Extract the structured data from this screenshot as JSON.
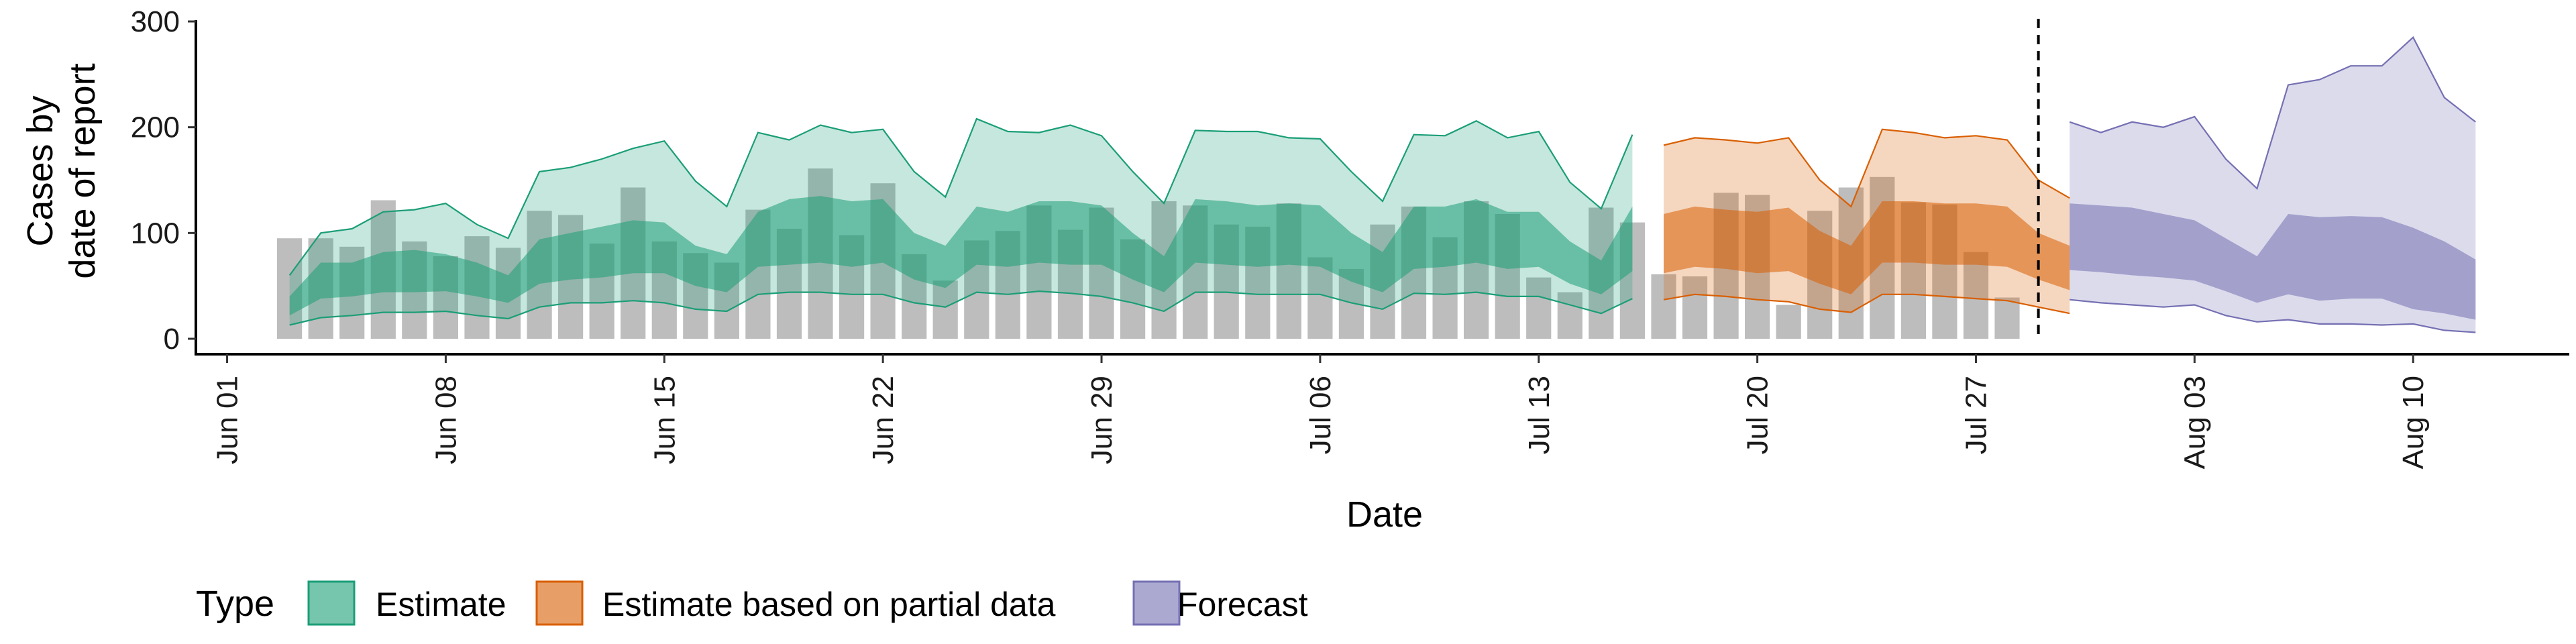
{
  "chart_data": {
    "type": "area",
    "xlabel": "Date",
    "ylabel": [
      "Cases by",
      "date of report"
    ],
    "ylim": [
      0,
      300
    ],
    "yticks": [
      0,
      100,
      200,
      300
    ],
    "xlim": [
      "2020-05-31",
      "2020-08-15"
    ],
    "xticks": [
      {
        "date": "2020-06-01",
        "label": "Jun 01"
      },
      {
        "date": "2020-06-08",
        "label": "Jun 08"
      },
      {
        "date": "2020-06-15",
        "label": "Jun 15"
      },
      {
        "date": "2020-06-22",
        "label": "Jun 22"
      },
      {
        "date": "2020-06-29",
        "label": "Jun 29"
      },
      {
        "date": "2020-07-06",
        "label": "Jul 06"
      },
      {
        "date": "2020-07-13",
        "label": "Jul 13"
      },
      {
        "date": "2020-07-20",
        "label": "Jul 20"
      },
      {
        "date": "2020-07-27",
        "label": "Jul 27"
      },
      {
        "date": "2020-08-03",
        "label": "Aug 03"
      },
      {
        "date": "2020-08-10",
        "label": "Aug 10"
      }
    ],
    "vline_date": "2020-07-29",
    "grid": false,
    "legend_title": "Type",
    "legend_position": "bottom",
    "colors": {
      "bars": "#bdbdbd",
      "estimate": "#1b9e77",
      "partial": "#d95f02",
      "forecast": "#7570b3"
    },
    "observed": {
      "start_date": "2020-06-03",
      "values": [
        95,
        95,
        87,
        131,
        92,
        78,
        97,
        86,
        121,
        117,
        90,
        143,
        92,
        81,
        72,
        122,
        104,
        161,
        98,
        147,
        80,
        55,
        93,
        102,
        126,
        103,
        124,
        94,
        130,
        126,
        108,
        106,
        128,
        77,
        66,
        108,
        125,
        96,
        130,
        118,
        58,
        44,
        124,
        110,
        61,
        59,
        138,
        136,
        32,
        121,
        143,
        153,
        129,
        127,
        82,
        39
      ]
    },
    "series": [
      {
        "name": "Estimate",
        "start_date": "2020-06-03",
        "upper90": [
          60,
          100,
          104,
          120,
          122,
          128,
          108,
          95,
          158,
          162,
          170,
          180,
          187,
          149,
          125,
          195,
          188,
          202,
          195,
          198,
          158,
          134,
          208,
          196,
          195,
          202,
          192,
          158,
          128,
          197,
          196,
          196,
          190,
          189,
          158,
          130,
          193,
          192,
          206,
          190,
          196,
          148,
          123,
          193
        ],
        "upper50": [
          40,
          72,
          72,
          82,
          84,
          80,
          72,
          60,
          94,
          100,
          106,
          112,
          110,
          88,
          80,
          120,
          132,
          135,
          130,
          132,
          100,
          88,
          125,
          120,
          130,
          130,
          126,
          100,
          78,
          132,
          130,
          126,
          128,
          126,
          100,
          82,
          125,
          125,
          132,
          120,
          120,
          92,
          74,
          125
        ],
        "lower50": [
          22,
          38,
          40,
          44,
          44,
          45,
          40,
          34,
          52,
          56,
          58,
          62,
          62,
          50,
          44,
          68,
          70,
          72,
          68,
          72,
          56,
          48,
          70,
          68,
          72,
          70,
          70,
          56,
          44,
          72,
          70,
          68,
          70,
          68,
          54,
          44,
          66,
          68,
          72,
          66,
          68,
          52,
          42,
          64
        ],
        "lower90": [
          13,
          20,
          22,
          25,
          25,
          26,
          22,
          19,
          30,
          34,
          34,
          36,
          34,
          28,
          26,
          42,
          44,
          44,
          42,
          42,
          34,
          30,
          44,
          42,
          45,
          43,
          40,
          34,
          26,
          44,
          44,
          42,
          42,
          42,
          34,
          28,
          43,
          42,
          44,
          40,
          40,
          32,
          24,
          38
        ]
      },
      {
        "name": "Estimate based on partial data",
        "start_date": "2020-07-17",
        "upper90": [
          183,
          190,
          188,
          185,
          190,
          150,
          125,
          198,
          195,
          190,
          192,
          188,
          150,
          133
        ],
        "upper50": [
          118,
          125,
          122,
          120,
          124,
          102,
          88,
          130,
          130,
          128,
          128,
          125,
          100,
          88
        ],
        "lower50": [
          62,
          68,
          66,
          62,
          64,
          52,
          42,
          72,
          72,
          70,
          70,
          68,
          56,
          46
        ],
        "lower90": [
          37,
          42,
          40,
          37,
          35,
          28,
          25,
          42,
          42,
          40,
          38,
          36,
          30,
          24
        ]
      },
      {
        "name": "Forecast",
        "start_date": "2020-07-30",
        "upper90": [
          205,
          195,
          205,
          200,
          210,
          170,
          142,
          240,
          245,
          258,
          258,
          285,
          228,
          205
        ],
        "upper50": [
          128,
          126,
          124,
          118,
          112,
          95,
          78,
          118,
          115,
          116,
          115,
          105,
          92,
          75
        ],
        "lower50": [
          65,
          63,
          60,
          58,
          55,
          45,
          34,
          42,
          36,
          38,
          38,
          28,
          24,
          18
        ],
        "lower90": [
          37,
          34,
          32,
          30,
          32,
          22,
          16,
          18,
          14,
          14,
          13,
          14,
          8,
          6
        ]
      }
    ]
  }
}
